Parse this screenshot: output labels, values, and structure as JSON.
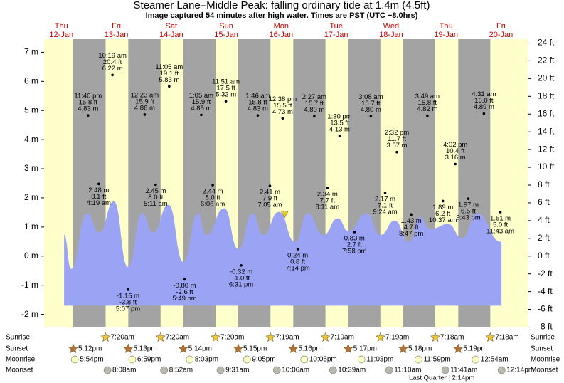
{
  "chart_data": {
    "type": "area",
    "title": "Steamer Lane–Middle Peak: falling  ordinary tide at 1.4m (4.5ft)",
    "subtitle": "Image captured 54 minutes after high water. Times are PST (UTC −8.0hrs)",
    "days": [
      {
        "weekday": "Thu",
        "date": "12-Jan"
      },
      {
        "weekday": "Fri",
        "date": "13-Jan"
      },
      {
        "weekday": "Sat",
        "date": "14-Jan"
      },
      {
        "weekday": "Sun",
        "date": "15-Jan"
      },
      {
        "weekday": "Mon",
        "date": "16-Jan"
      },
      {
        "weekday": "Tue",
        "date": "17-Jan"
      },
      {
        "weekday": "Wed",
        "date": "18-Jan"
      },
      {
        "weekday": "Thu",
        "date": "19-Jan"
      },
      {
        "weekday": "Fri",
        "date": "20-Jan"
      }
    ],
    "x": [
      13.2,
      16.3,
      23.1,
      28.7,
      34.9,
      41.1,
      47.3,
      52.0,
      58.8,
      65.3,
      71.6,
      75.3,
      83.1,
      89.3,
      95.5,
      100.1,
      107.0,
      114.1,
      119.4,
      126.5,
      132.7,
      137.4,
      145.2,
      151.4,
      157.6,
      163.8,
      168.5,
      173.1,
      180.9,
      187.1,
      193.3,
      204.2
    ],
    "values": [
      0.73,
      -0.44,
      1.47,
      0.81,
      1.88,
      -0.37,
      1.47,
      0.81,
      1.76,
      -0.2,
      1.47,
      0.73,
      1.64,
      0.24,
      1.47,
      0.73,
      1.52,
      0.49,
      1.47,
      0.73,
      1.3,
      0.86,
      1.47,
      0.73,
      1.22,
      0.49,
      1.34,
      0.93,
      1.1,
      0.61,
      1.47,
      0.49
    ],
    "baseline": -1.7,
    "color": "#9ba4f4",
    "xlim": [
      4.47,
      215.66
    ],
    "ylim": [
      -2.45,
      7.45
    ],
    "yticks": [
      {
        "value": -2,
        "label": "-2 m"
      },
      {
        "value": -1,
        "label": "-1 m"
      },
      {
        "value": 0,
        "label": "0 m"
      },
      {
        "value": 1,
        "label": "1 m"
      },
      {
        "value": 2,
        "label": "2 m"
      },
      {
        "value": 3,
        "label": "3 m"
      },
      {
        "value": 4,
        "label": "4 m"
      },
      {
        "value": 5,
        "label": "5 m"
      },
      {
        "value": 6,
        "label": "6 m"
      },
      {
        "value": 7,
        "label": "7 m"
      }
    ],
    "y2lim": [
      -8.04,
      24.44
    ],
    "y2ticks": [
      {
        "value": -8,
        "label": "-8 ft"
      },
      {
        "value": -6,
        "label": "-6 ft"
      },
      {
        "value": -4,
        "label": "-4 ft"
      },
      {
        "value": -2,
        "label": "-2 ft"
      },
      {
        "value": 0,
        "label": "0 ft"
      },
      {
        "value": 2,
        "label": "2 ft"
      },
      {
        "value": 4,
        "label": "4 ft"
      },
      {
        "value": 6,
        "label": "6 ft"
      },
      {
        "value": 8,
        "label": "8 ft"
      },
      {
        "value": 10,
        "label": "10 ft"
      },
      {
        "value": 12,
        "label": "12 ft"
      },
      {
        "value": 14,
        "label": "14 ft"
      },
      {
        "value": 16,
        "label": "16 ft"
      },
      {
        "value": 18,
        "label": "18 ft"
      },
      {
        "value": 20,
        "label": "20 ft"
      },
      {
        "value": 22,
        "label": "22 ft"
      },
      {
        "value": 24,
        "label": "24 ft"
      }
    ],
    "now": {
      "x": 109.53,
      "value": 1.4
    },
    "extremes": [
      {
        "x": 23.67,
        "value": 4.83,
        "label": "4.83 m",
        "ft": "15.8 ft",
        "time": "11:40 pm"
      },
      {
        "x": 28.32,
        "value": 2.48,
        "label": "2.48 m",
        "ft": "8.1 ft",
        "time": "4:19 am"
      },
      {
        "x": 34.32,
        "value": 6.22,
        "label": "6.22 m",
        "ft": "20.4 ft",
        "time": "10:19 am"
      },
      {
        "x": 41.12,
        "value": -1.15,
        "label": "-1.15 m",
        "ft": "-3.8 ft",
        "time": "5:07 pm"
      },
      {
        "x": 48.38,
        "value": 4.86,
        "label": "4.86 m",
        "ft": "15.9 ft",
        "time": "12:23 am"
      },
      {
        "x": 53.18,
        "value": 2.45,
        "label": "2.45 m",
        "ft": "8.0 ft",
        "time": "5:11 am"
      },
      {
        "x": 59.08,
        "value": 5.83,
        "label": "5.83 m",
        "ft": "19.1 ft",
        "time": "11:05 am"
      },
      {
        "x": 65.82,
        "value": -0.8,
        "label": "-0.80 m",
        "ft": "-2.6 ft",
        "time": "5:49 pm"
      },
      {
        "x": 73.08,
        "value": 4.85,
        "label": "4.85 m",
        "ft": "15.9 ft",
        "time": "1:05 am"
      },
      {
        "x": 78.1,
        "value": 2.44,
        "label": "2.44 m",
        "ft": "8.0 ft",
        "time": "6:06 am"
      },
      {
        "x": 83.85,
        "value": 5.32,
        "label": "5.32 m",
        "ft": "17.5 ft",
        "time": "11:51 am"
      },
      {
        "x": 90.52,
        "value": -0.32,
        "label": "-0.32 m",
        "ft": "-1.0 ft",
        "time": "6:31 pm"
      },
      {
        "x": 97.77,
        "value": 4.83,
        "label": "4.83 m",
        "ft": "15.8 ft",
        "time": "1:46 am"
      },
      {
        "x": 103.08,
        "value": 2.41,
        "label": "2.41 m",
        "ft": "7.9 ft",
        "time": "7:05 am"
      },
      {
        "x": 108.63,
        "value": 4.73,
        "label": "4.73 m",
        "ft": "15.5 ft",
        "time": "12:38 pm"
      },
      {
        "x": 115.23,
        "value": 0.24,
        "label": "0.24 m",
        "ft": "0.8 ft",
        "time": "7:14 pm"
      },
      {
        "x": 122.45,
        "value": 4.8,
        "label": "4.80 m",
        "ft": "15.7 ft",
        "time": "2:27 am"
      },
      {
        "x": 128.18,
        "value": 2.34,
        "label": "2.34 m",
        "ft": "7.7 ft",
        "time": "8:11 am"
      },
      {
        "x": 133.5,
        "value": 4.13,
        "label": "4.13 m",
        "ft": "13.5 ft",
        "time": "1:30 pm"
      },
      {
        "x": 139.97,
        "value": 0.83,
        "label": "0.83 m",
        "ft": "2.7 ft",
        "time": "7:58 pm"
      },
      {
        "x": 147.13,
        "value": 4.8,
        "label": "4.80 m",
        "ft": "15.7 ft",
        "time": "3:08 am"
      },
      {
        "x": 153.4,
        "value": 2.17,
        "label": "2.17 m",
        "ft": "7.1 ft",
        "time": "9:24 am"
      },
      {
        "x": 158.53,
        "value": 3.57,
        "label": "3.57 m",
        "ft": "11.7 ft",
        "time": "2:32 pm"
      },
      {
        "x": 164.78,
        "value": 1.43,
        "label": "1.43 m",
        "ft": "4.7 ft",
        "time": "8:47 pm"
      },
      {
        "x": 171.82,
        "value": 4.82,
        "label": "4.82 m",
        "ft": "15.8 ft",
        "time": "3:49 am"
      },
      {
        "x": 178.62,
        "value": 1.89,
        "label": "1.89 m",
        "ft": "6.2 ft",
        "time": "10:37 am"
      },
      {
        "x": 184.03,
        "value": 3.16,
        "label": "3.16 m",
        "ft": "10.4 ft",
        "time": "4:02 pm"
      },
      {
        "x": 189.72,
        "value": 1.97,
        "label": "1.97 m",
        "ft": "6.5 ft",
        "time": "9:43 pm"
      },
      {
        "x": 196.52,
        "value": 4.89,
        "label": "4.89 m",
        "ft": "16.0 ft",
        "time": "4:31 am"
      },
      {
        "x": 203.72,
        "value": 1.51,
        "label": "1.51 m",
        "ft": "5.0 ft",
        "time": "11:43 am"
      }
    ],
    "rows": [
      {
        "name": "Sunrise",
        "color": "#e8c840",
        "events": [
          {
            "x": 31.33,
            "label": "7:20am"
          },
          {
            "x": 55.33,
            "label": "7:20am"
          },
          {
            "x": 79.33,
            "label": "7:20am"
          },
          {
            "x": 103.32,
            "label": "7:19am"
          },
          {
            "x": 127.32,
            "label": "7:19am"
          },
          {
            "x": 151.32,
            "label": "7:19am"
          },
          {
            "x": 175.3,
            "label": "7:18am"
          },
          {
            "x": 199.3,
            "label": "7:18am"
          }
        ]
      },
      {
        "name": "Sunset",
        "color": "#b0703a",
        "events": [
          {
            "x": 17.2,
            "label": "5:12pm"
          },
          {
            "x": 41.22,
            "label": "5:13pm"
          },
          {
            "x": 65.23,
            "label": "5:14pm"
          },
          {
            "x": 89.25,
            "label": "5:15pm"
          },
          {
            "x": 113.27,
            "label": "5:16pm"
          },
          {
            "x": 137.28,
            "label": "5:17pm"
          },
          {
            "x": 161.3,
            "label": "5:18pm"
          },
          {
            "x": 185.32,
            "label": "5:19pm"
          }
        ]
      },
      {
        "name": "Moonrise",
        "color": "#ffffc8",
        "events": [
          {
            "x": 17.9,
            "label": "5:54pm"
          },
          {
            "x": 42.98,
            "label": "6:59pm"
          },
          {
            "x": 68.05,
            "label": "8:03pm"
          },
          {
            "x": 93.08,
            "label": "9:05pm"
          },
          {
            "x": 118.08,
            "label": "10:05pm"
          },
          {
            "x": 143.05,
            "label": "11:03pm"
          },
          {
            "x": 167.98,
            "label": "11:59pm"
          },
          {
            "x": 192.9,
            "label": "12:54am"
          }
        ]
      },
      {
        "name": "Moonset",
        "color": "#b8b8b0",
        "events": [
          {
            "x": 32.13,
            "label": "8:08am"
          },
          {
            "x": 56.87,
            "label": "8:52am"
          },
          {
            "x": 81.52,
            "label": "9:31am"
          },
          {
            "x": 106.1,
            "label": "10:06am"
          },
          {
            "x": 130.65,
            "label": "10:39am"
          },
          {
            "x": 155.17,
            "label": "11:10am"
          },
          {
            "x": 179.68,
            "label": "11:41am"
          },
          {
            "x": 204.23,
            "label": "12:14pm"
          }
        ]
      }
    ],
    "moon_phase": "Last Quarter | 2:14pm",
    "day_color": "#ffffcc",
    "night_color": "#a3a3a3",
    "day_label_color": "#cc0000"
  }
}
